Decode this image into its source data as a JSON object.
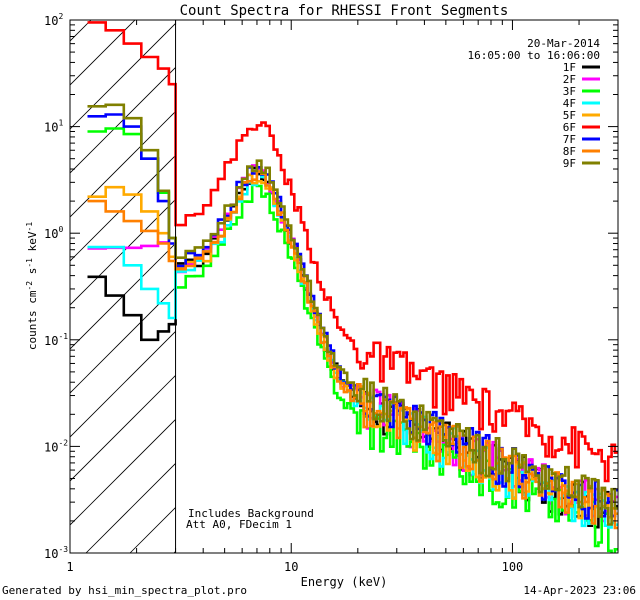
{
  "chart_data": {
    "type": "line",
    "title": "Count Spectra for RHESSI Front Segments",
    "xlabel": "Energy (keV)",
    "ylabel_parts": {
      "a": "counts cm",
      "b": "-2",
      "c": " s",
      "d": "-1",
      "e": " keV",
      "f": "-1"
    },
    "x_scale": "log",
    "y_scale": "log",
    "xlim": [
      1,
      300
    ],
    "ylim": [
      0.001,
      100
    ],
    "x_ticks": [
      {
        "v": 1,
        "label": "1"
      },
      {
        "v": 10,
        "label": "10"
      },
      {
        "v": 100,
        "label": "100"
      }
    ],
    "y_ticks": [
      {
        "v": 0.001,
        "base": "10",
        "exp": "-3"
      },
      {
        "v": 0.01,
        "base": "10",
        "exp": "-2"
      },
      {
        "v": 0.1,
        "base": "10",
        "exp": "-1"
      },
      {
        "v": 1,
        "base": "10",
        "exp": "0"
      },
      {
        "v": 10,
        "base": "10",
        "exp": "1"
      },
      {
        "v": 100,
        "base": "10",
        "exp": "2"
      }
    ],
    "hatched_region_keV": [
      1,
      3
    ],
    "date": "20-Mar-2014",
    "time_range": "16:05:00 to 16:06:00",
    "annotations": [
      "Includes Background",
      "Att A0, FDecim 1"
    ],
    "footer_left": "Generated by hsi_min_spectra_plot.pro",
    "footer_right": "14-Apr-2023 23:06",
    "legend_position": "top-right",
    "series": [
      {
        "name": "1F",
        "color": "#000000",
        "low": [
          0.39,
          0.26,
          0.17,
          0.1,
          0.12,
          0.14
        ],
        "offset": 1.0
      },
      {
        "name": "2F",
        "color": "#ff00ff",
        "low": [
          0.72,
          0.73,
          0.73,
          0.76,
          0.82,
          0.9
        ],
        "offset": 1.05
      },
      {
        "name": "3F",
        "color": "#00ff00",
        "low": [
          9.0,
          9.6,
          8.5,
          5.0,
          2.4,
          0.9
        ],
        "offset": 0.7
      },
      {
        "name": "4F",
        "color": "#00ffff",
        "low": [
          0.74,
          0.74,
          0.5,
          0.3,
          0.22,
          0.16
        ],
        "offset": 0.92
      },
      {
        "name": "5F",
        "color": "#ffaa00",
        "low": [
          2.2,
          2.7,
          2.3,
          1.6,
          1.0,
          0.6
        ],
        "offset": 0.95
      },
      {
        "name": "6F",
        "color": "#ff0000",
        "low": [
          95,
          80,
          60,
          45,
          35,
          25
        ],
        "offset": 3.0
      },
      {
        "name": "7F",
        "color": "#0000ff",
        "low": [
          12.5,
          13.0,
          10.0,
          5.0,
          2.0,
          0.8
        ],
        "offset": 1.15
      },
      {
        "name": "8F",
        "color": "#ff8000",
        "low": [
          2.0,
          1.6,
          1.3,
          1.05,
          0.8,
          0.55
        ],
        "offset": 1.0
      },
      {
        "name": "9F",
        "color": "#808000",
        "low": [
          15.5,
          16.0,
          12.0,
          6.0,
          2.5,
          0.9
        ],
        "offset": 1.2
      }
    ],
    "peak_profile": {
      "energies_keV": [
        3.0,
        3.5,
        4.0,
        4.5,
        5.0,
        5.5,
        6.0,
        6.5,
        7.0,
        7.5,
        8.0,
        8.5,
        9.0,
        10.0,
        11.0,
        12.0,
        13.0,
        14.0,
        15.0,
        16.0,
        17.0,
        18.0,
        20.0,
        22.0,
        25.0,
        28.0,
        32.0,
        36.0,
        40.0,
        45.0,
        50.0,
        56.0,
        63.0,
        70.0,
        80.0,
        90.0,
        100.0,
        115.0,
        130.0,
        150.0,
        170.0,
        190.0,
        210.0,
        240.0,
        270.0,
        300.0
      ],
      "counts": [
        0.45,
        0.5,
        0.6,
        0.8,
        1.2,
        1.8,
        2.6,
        3.3,
        3.8,
        3.5,
        2.8,
        2.1,
        1.5,
        0.85,
        0.48,
        0.27,
        0.16,
        0.1,
        0.068,
        0.05,
        0.04,
        0.034,
        0.028,
        0.025,
        0.022,
        0.02,
        0.018,
        0.016,
        0.015,
        0.013,
        0.012,
        0.011,
        0.0095,
        0.0085,
        0.0075,
        0.0065,
        0.006,
        0.0055,
        0.0049,
        0.0044,
        0.004,
        0.0036,
        0.0033,
        0.0029,
        0.0026,
        0.0023
      ]
    }
  }
}
